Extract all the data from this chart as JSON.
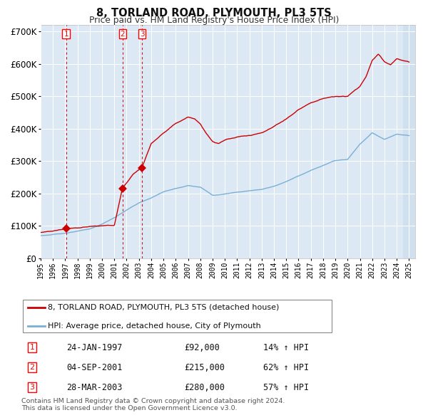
{
  "title": "8, TORLAND ROAD, PLYMOUTH, PL3 5TS",
  "subtitle": "Price paid vs. HM Land Registry's House Price Index (HPI)",
  "legend_line1": "8, TORLAND ROAD, PLYMOUTH, PL3 5TS (detached house)",
  "legend_line2": "HPI: Average price, detached house, City of Plymouth",
  "footer1": "Contains HM Land Registry data © Crown copyright and database right 2024.",
  "footer2": "This data is licensed under the Open Government Licence v3.0.",
  "transactions": [
    {
      "num": 1,
      "date": "24-JAN-1997",
      "price": 92000,
      "hpi_pct": "14% ↑ HPI",
      "year_x": 1997.07
    },
    {
      "num": 2,
      "date": "04-SEP-2001",
      "price": 215000,
      "hpi_pct": "62% ↑ HPI",
      "year_x": 2001.67
    },
    {
      "num": 3,
      "date": "28-MAR-2003",
      "price": 280000,
      "hpi_pct": "57% ↑ HPI",
      "year_x": 2003.25
    }
  ],
  "background_color": "#dce9f5",
  "red_line_color": "#cc0000",
  "blue_line_color": "#7aafd4",
  "grid_color": "#ffffff",
  "ylim": [
    0,
    720000
  ],
  "yticks": [
    0,
    100000,
    200000,
    300000,
    400000,
    500000,
    600000,
    700000
  ],
  "xlim_start": 1995.0,
  "xlim_end": 2025.5,
  "hpi_control_years": [
    1995,
    1996,
    1997,
    1998,
    1999,
    2000,
    2001,
    2002,
    2003,
    2004,
    2005,
    2006,
    2007,
    2008,
    2009,
    2010,
    2011,
    2012,
    2013,
    2014,
    2015,
    2016,
    2017,
    2018,
    2019,
    2020,
    2021,
    2022,
    2023,
    2024,
    2025
  ],
  "hpi_control_vals": [
    70000,
    73000,
    78000,
    83000,
    90000,
    105000,
    125000,
    148000,
    170000,
    185000,
    205000,
    215000,
    225000,
    220000,
    195000,
    200000,
    205000,
    210000,
    215000,
    225000,
    240000,
    258000,
    275000,
    290000,
    305000,
    308000,
    355000,
    390000,
    370000,
    385000,
    380000
  ],
  "prop_control_years": [
    1995,
    1996,
    1997.07,
    1998,
    1999,
    2000,
    2001.0,
    2001.67,
    2002.0,
    2002.5,
    2003.0,
    2003.25,
    2003.5,
    2004,
    2005,
    2006,
    2007.0,
    2007.5,
    2008.0,
    2008.5,
    2009,
    2009.5,
    2010,
    2011,
    2012,
    2013,
    2014,
    2015,
    2016,
    2017,
    2018,
    2019,
    2020,
    2021,
    2021.5,
    2022,
    2022.5,
    2023,
    2023.5,
    2024,
    2024.5,
    2025
  ],
  "prop_control_vals": [
    80000,
    83000,
    92000,
    95000,
    98000,
    100000,
    100000,
    215000,
    230000,
    255000,
    270000,
    280000,
    305000,
    355000,
    390000,
    420000,
    440000,
    435000,
    420000,
    390000,
    365000,
    360000,
    370000,
    380000,
    385000,
    395000,
    415000,
    440000,
    470000,
    490000,
    505000,
    510000,
    510000,
    540000,
    570000,
    620000,
    640000,
    615000,
    605000,
    625000,
    620000,
    615000
  ]
}
